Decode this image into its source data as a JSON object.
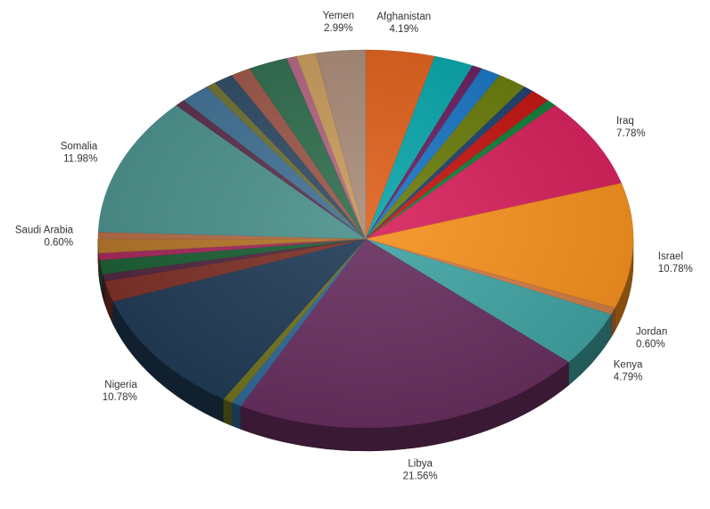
{
  "chart_data": {
    "type": "pie",
    "title": "",
    "three_d": true,
    "start_angle_deg": -90,
    "direction": "clockwise",
    "slices": [
      {
        "label": "Afghanistan",
        "value": 4.19,
        "color": "#dd5f1a",
        "show_label": true,
        "percent_label": "4.19%"
      },
      {
        "label": "",
        "value": 2.4,
        "color": "#07a4a9",
        "show_label": false
      },
      {
        "label": "",
        "value": 0.6,
        "color": "#6b1d5c",
        "show_label": false
      },
      {
        "label": "",
        "value": 1.2,
        "color": "#1873c2",
        "show_label": false
      },
      {
        "label": "",
        "value": 1.8,
        "color": "#687a0a",
        "show_label": false
      },
      {
        "label": "",
        "value": 0.6,
        "color": "#1c3f6d",
        "show_label": false
      },
      {
        "label": "",
        "value": 1.2,
        "color": "#c2130f",
        "show_label": false
      },
      {
        "label": "",
        "value": 0.6,
        "color": "#0f7c36",
        "show_label": false
      },
      {
        "label": "Iraq",
        "value": 7.78,
        "color": "#d61f5b",
        "show_label": true,
        "percent_label": "7.78%"
      },
      {
        "label": "Israel",
        "value": 10.78,
        "color": "#f58f1c",
        "show_label": true,
        "percent_label": "10.78%"
      },
      {
        "label": "Jordan",
        "value": 0.6,
        "color": "#d07a45",
        "show_label": true,
        "percent_label": "0.60%"
      },
      {
        "label": "Kenya",
        "value": 4.79,
        "color": "#3fa3a3",
        "show_label": true,
        "percent_label": "4.79%"
      },
      {
        "label": "Libya",
        "value": 21.56,
        "color": "#672e5e",
        "show_label": true,
        "percent_label": "21.56%"
      },
      {
        "label": "",
        "value": 0.6,
        "color": "#2e6897",
        "show_label": false
      },
      {
        "label": "",
        "value": 0.6,
        "color": "#71721e",
        "show_label": false
      },
      {
        "label": "Nigeria",
        "value": 10.78,
        "color": "#1f3a55",
        "show_label": true,
        "percent_label": "10.78%"
      },
      {
        "label": "",
        "value": 1.8,
        "color": "#7c2f25",
        "show_label": false
      },
      {
        "label": "",
        "value": 0.6,
        "color": "#4f2640",
        "show_label": false
      },
      {
        "label": "",
        "value": 1.2,
        "color": "#1a5e33",
        "show_label": false
      },
      {
        "label": "",
        "value": 0.6,
        "color": "#a3275a",
        "show_label": false
      },
      {
        "label": "",
        "value": 1.2,
        "color": "#b37427",
        "show_label": false
      },
      {
        "label": "Saudi Arabia",
        "value": 0.6,
        "color": "#b26a44",
        "show_label": true,
        "percent_label": "0.60%"
      },
      {
        "label": "Somalia",
        "value": 11.98,
        "color": "#4a8f8b",
        "show_label": true,
        "percent_label": "11.98%"
      },
      {
        "label": "",
        "value": 0.6,
        "color": "#5a2e4a",
        "show_label": false
      },
      {
        "label": "",
        "value": 1.8,
        "color": "#3f6f92",
        "show_label": false
      },
      {
        "label": "",
        "value": 0.6,
        "color": "#6e7032",
        "show_label": false
      },
      {
        "label": "",
        "value": 1.2,
        "color": "#2f4a63",
        "show_label": false
      },
      {
        "label": "",
        "value": 1.2,
        "color": "#9b5548",
        "show_label": false
      },
      {
        "label": "",
        "value": 2.4,
        "color": "#2f6b4c",
        "show_label": false
      },
      {
        "label": "",
        "value": 0.6,
        "color": "#b26381",
        "show_label": false
      },
      {
        "label": "",
        "value": 1.2,
        "color": "#c69a5a",
        "show_label": false
      },
      {
        "label": "Yemen",
        "value": 2.99,
        "color": "#a88977",
        "show_label": true,
        "percent_label": "2.99%"
      }
    ]
  }
}
